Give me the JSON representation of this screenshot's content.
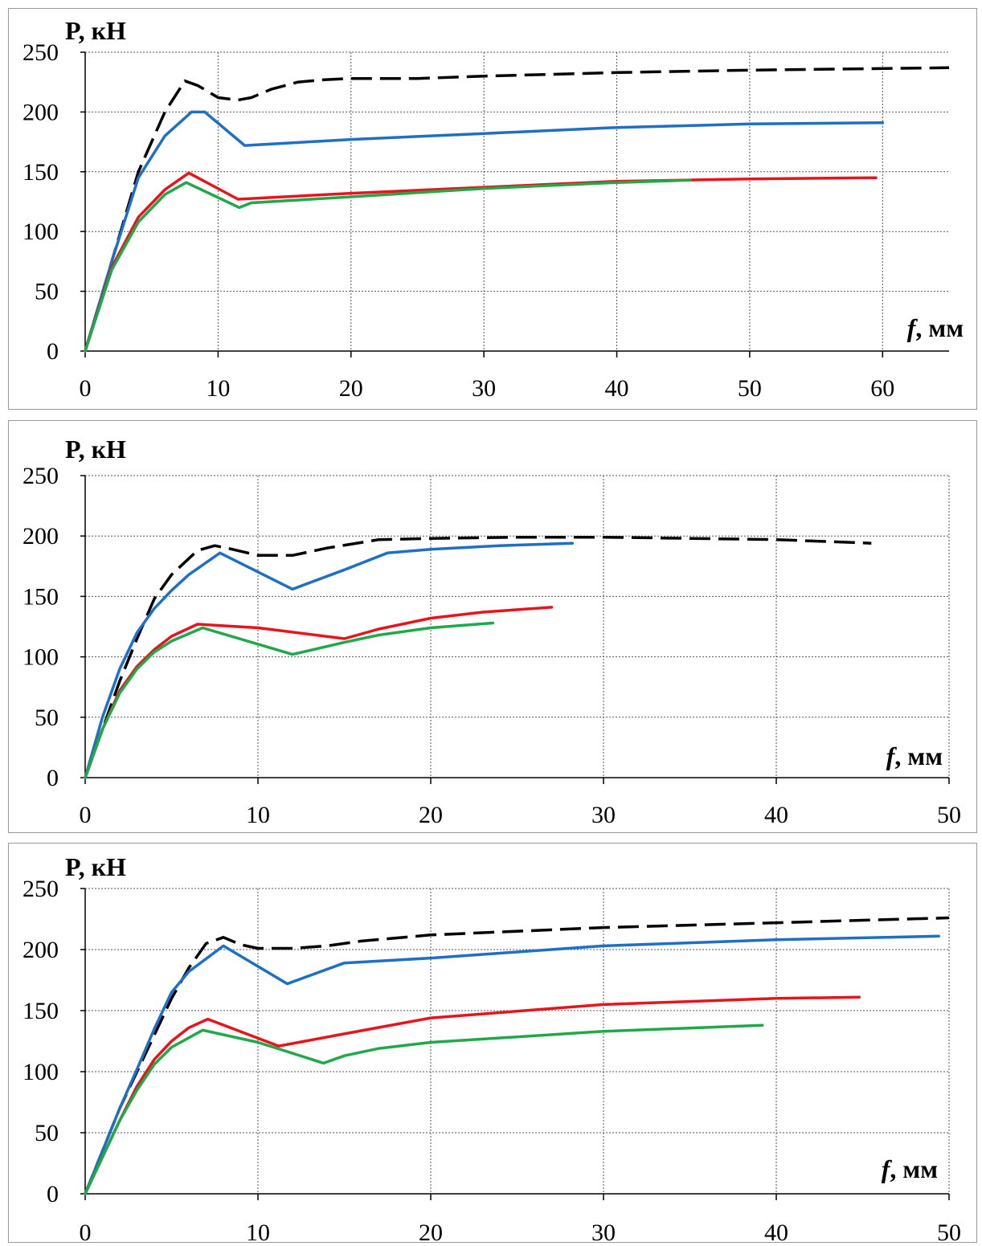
{
  "chart_data": [
    {
      "type": "line",
      "ylabel": "P, кН",
      "xlabel_var": "f",
      "xlabel_unit": ", мм",
      "xlim": [
        0,
        65
      ],
      "ylim": [
        0,
        250
      ],
      "xticks": [
        "0",
        "10",
        "20",
        "30",
        "40",
        "50",
        "60"
      ],
      "yticks": [
        "0",
        "50",
        "100",
        "150",
        "200",
        "250"
      ],
      "grid": true,
      "series": [
        {
          "color": "#000000",
          "dashed": true,
          "x": [
            0,
            2,
            4,
            6,
            7.5,
            8.5,
            10,
            11.5,
            12.5,
            14,
            16,
            18,
            20,
            25,
            30,
            40,
            50,
            65
          ],
          "y": [
            0,
            75,
            150,
            200,
            226,
            222,
            212,
            210,
            212,
            219,
            225,
            227,
            228,
            228,
            230,
            233,
            235,
            237
          ]
        },
        {
          "color": "#1f6fc5",
          "dashed": false,
          "x": [
            0,
            2,
            4,
            6,
            8,
            9,
            12,
            20,
            30,
            40,
            50,
            60
          ],
          "y": [
            0,
            75,
            145,
            180,
            200,
            200,
            172,
            177,
            182,
            187,
            190,
            191
          ]
        },
        {
          "color": "#e8141b",
          "dashed": false,
          "x": [
            0,
            2,
            4,
            6,
            7.8,
            11.5,
            20,
            30,
            40,
            50,
            59.5
          ],
          "y": [
            0,
            70,
            112,
            135,
            149,
            127,
            132,
            137,
            142,
            144,
            145
          ]
        },
        {
          "color": "#21a84a",
          "dashed": false,
          "x": [
            0,
            2,
            4,
            6,
            7.6,
            11.6,
            12.5,
            20,
            30,
            40,
            45.5
          ],
          "y": [
            0,
            68,
            108,
            131,
            141,
            120,
            124,
            129,
            136,
            141,
            143
          ]
        }
      ]
    },
    {
      "type": "line",
      "ylabel": "P, кН",
      "xlabel_var": "f",
      "xlabel_unit": ", мм",
      "xlim": [
        0,
        50
      ],
      "ylim": [
        0,
        250
      ],
      "xticks": [
        "0",
        "10",
        "20",
        "30",
        "40",
        "50"
      ],
      "yticks": [
        "0",
        "50",
        "100",
        "150",
        "200",
        "250"
      ],
      "grid": true,
      "series": [
        {
          "color": "#000000",
          "dashed": true,
          "x": [
            0,
            1,
            2,
            3,
            4,
            5,
            6.5,
            7.5,
            8.5,
            10,
            12,
            14,
            17,
            20,
            25,
            30,
            35,
            40,
            45.5
          ],
          "y": [
            0,
            40,
            80,
            115,
            148,
            168,
            188,
            192,
            189,
            184,
            184,
            190,
            197,
            198,
            199,
            199,
            198,
            197,
            194
          ]
        },
        {
          "color": "#1f6fc5",
          "dashed": false,
          "x": [
            0,
            1,
            2,
            3,
            4,
            5,
            6,
            7.8,
            12,
            15,
            17.5,
            20,
            24,
            28.2
          ],
          "y": [
            0,
            50,
            90,
            120,
            140,
            155,
            168,
            186,
            156,
            172,
            186,
            189,
            192,
            194
          ]
        },
        {
          "color": "#e8141b",
          "dashed": false,
          "x": [
            0,
            1,
            2,
            3,
            4,
            5,
            6.5,
            10,
            15,
            17,
            20,
            23,
            27
          ],
          "y": [
            0,
            40,
            72,
            92,
            106,
            117,
            127,
            124,
            115,
            123,
            132,
            137,
            141
          ]
        },
        {
          "color": "#21a84a",
          "dashed": false,
          "x": [
            0,
            1,
            2,
            3,
            4,
            5,
            6.8,
            12,
            15,
            17,
            20,
            23.6
          ],
          "y": [
            0,
            40,
            70,
            90,
            104,
            113,
            124,
            102,
            112,
            118,
            124,
            128
          ]
        }
      ]
    },
    {
      "type": "line",
      "ylabel": "P, кН",
      "xlabel_var": "f",
      "xlabel_unit": ", мм",
      "xlim": [
        0,
        50
      ],
      "ylim": [
        0,
        250
      ],
      "xticks": [
        "0",
        "10",
        "20",
        "30",
        "40",
        "50"
      ],
      "yticks": [
        "0",
        "50",
        "100",
        "150",
        "200",
        "250"
      ],
      "grid": true,
      "series": [
        {
          "color": "#000000",
          "dashed": true,
          "x": [
            0,
            1,
            2,
            3,
            4,
            5,
            6,
            7,
            8,
            9,
            10,
            12,
            14,
            16,
            20,
            30,
            40,
            50
          ],
          "y": [
            0,
            35,
            70,
            100,
            130,
            160,
            185,
            205,
            210,
            204,
            201,
            201,
            203,
            207,
            212,
            218,
            222,
            226
          ]
        },
        {
          "color": "#1f6fc5",
          "dashed": false,
          "x": [
            0,
            1,
            2,
            3,
            4,
            5,
            6,
            8,
            11.7,
            15,
            20,
            25,
            30,
            40,
            49.4
          ],
          "y": [
            0,
            35,
            70,
            102,
            135,
            165,
            182,
            203,
            172,
            189,
            193,
            198,
            203,
            208,
            211
          ]
        },
        {
          "color": "#e8141b",
          "dashed": false,
          "x": [
            0,
            1,
            2,
            3,
            4,
            5,
            6,
            7.1,
            11.2,
            15,
            20,
            30,
            40,
            44.8
          ],
          "y": [
            0,
            30,
            60,
            88,
            110,
            125,
            136,
            143,
            121,
            131,
            144,
            155,
            160,
            161
          ]
        },
        {
          "color": "#21a84a",
          "dashed": false,
          "x": [
            0,
            1,
            2,
            3,
            4,
            5,
            6.8,
            10,
            13.8,
            15,
            17,
            20,
            30,
            39.2
          ],
          "y": [
            0,
            30,
            60,
            85,
            106,
            120,
            134,
            124,
            107,
            113,
            119,
            124,
            133,
            138
          ]
        }
      ]
    }
  ]
}
